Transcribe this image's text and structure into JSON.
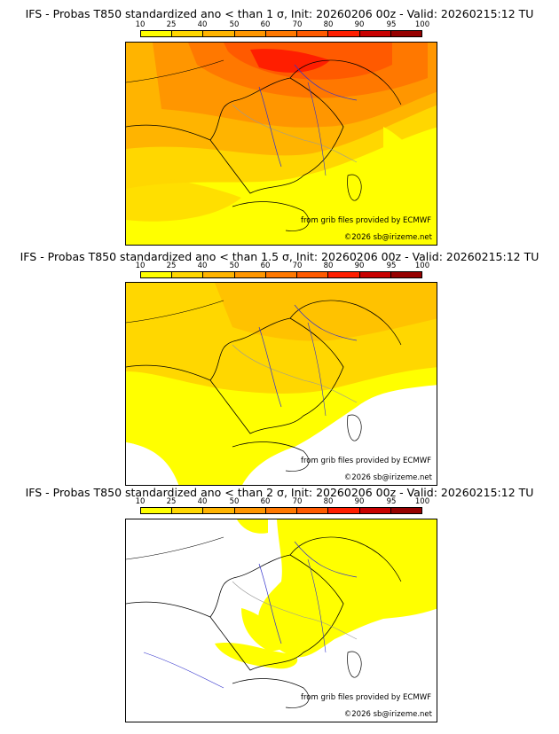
{
  "colors": {
    "yellow": "#ffff00",
    "gold": "#ffd700",
    "amber": "#ffb400",
    "orange": "#ff9600",
    "deep_orange": "#ff7800",
    "red_orange": "#ff5a00",
    "red": "#ff1e00",
    "dark_red": "#c80000",
    "maroon": "#960000",
    "darkest": "#640000"
  },
  "legend": {
    "ticks": [
      "10",
      "25",
      "40",
      "50",
      "60",
      "70",
      "80",
      "90",
      "95",
      "100"
    ],
    "colors": [
      "#ffff00",
      "#ffd700",
      "#ffb400",
      "#ff9600",
      "#ff7800",
      "#ff5a00",
      "#ff1e00",
      "#c80000",
      "#960000",
      "#640000"
    ]
  },
  "panels": [
    {
      "title": "IFS - Probas T850  standardized ano < than 1 σ, Init: 20260206 00z - Valid: 20260215:12 TU",
      "credit": "from grib files provided by ECMWF",
      "copyright": "©2026 sb@irizeme.net",
      "threshold_sigma": 1
    },
    {
      "title": "IFS - Probas T850  standardized ano < than 1.5 σ, Init: 20260206 00z - Valid: 20260215:12 TU",
      "credit": "from grib files provided by ECMWF",
      "copyright": "©2026 sb@irizeme.net",
      "threshold_sigma": 1.5
    },
    {
      "title": "IFS - Probas T850  standardized ano < than 2 σ, Init: 20260206 00z - Valid: 20260215:12 TU",
      "credit": "from grib files provided by ECMWF",
      "copyright": "©2026 sb@irizeme.net",
      "threshold_sigma": 2
    }
  ]
}
